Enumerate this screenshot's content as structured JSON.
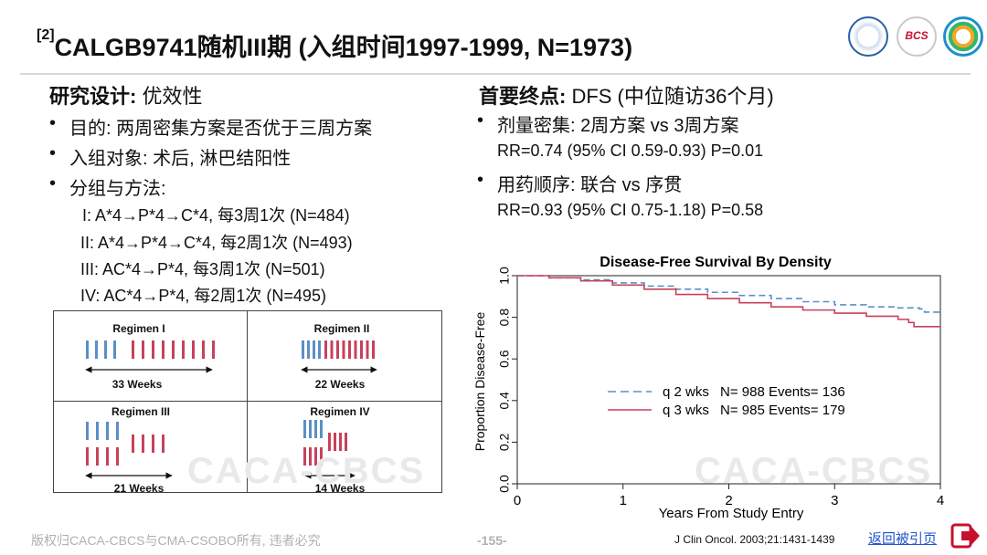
{
  "slide": {
    "title_ref": "[2]",
    "title": "CALGB9741随机III期 (入组时间1997-1999, N=1973)"
  },
  "left": {
    "heading_bold": "研究设计:",
    "heading_rest": " 优效性",
    "bullets": [
      "目的: 两周密集方案是否优于三周方案",
      "入组对象: 术后, 淋巴结阳性",
      "分组与方法:"
    ],
    "arms": [
      "I: A*4→P*4→C*4, 每3周1次 (N=484)",
      "II: A*4→P*4→C*4, 每2周1次 (N=493)",
      "III: AC*4→P*4, 每3周1次 (N=501)",
      "IV: AC*4→P*4, 每2周1次 (N=495)"
    ]
  },
  "regimens": [
    {
      "name": "Regimen I",
      "weeks": "33 Weeks"
    },
    {
      "name": "Regimen II",
      "weeks": "22 Weeks"
    },
    {
      "name": "Regimen III",
      "weeks": "21 Weeks"
    },
    {
      "name": "Regimen IV",
      "weeks": "14 Weeks"
    }
  ],
  "right": {
    "heading_bold": "首要终点:",
    "heading_rest": " DFS (中位随访36个月)",
    "items": [
      {
        "bullet": "剂量密集: 2周方案 vs 3周方案",
        "stat": "RR=0.74 (95% CI 0.59-0.93) P=0.01"
      },
      {
        "bullet": "用药顺序: 联合 vs 序贯",
        "stat": "RR=0.93 (95% CI 0.75-1.18) P=0.58"
      }
    ]
  },
  "chart_data": {
    "type": "line",
    "title": "Disease-Free Survival By Density",
    "xlabel": "Years From Study Entry",
    "ylabel": "Proportion Disease-Free",
    "xlim": [
      0,
      4
    ],
    "ylim": [
      0,
      1
    ],
    "xticks": [
      "0",
      "1",
      "2",
      "3",
      "4"
    ],
    "yticks": [
      "0.0",
      "0.2",
      "0.4",
      "0.6",
      "0.8",
      "1.0"
    ],
    "legend_position": "center-right",
    "series": [
      {
        "name": "q 2 wks",
        "stats": "N= 988 Events= 136",
        "color": "#5b8fc7",
        "style": "dashed",
        "x": [
          0,
          0.3,
          0.6,
          0.9,
          1.2,
          1.5,
          1.8,
          2.1,
          2.4,
          2.7,
          3.0,
          3.3,
          3.6,
          3.8,
          3.85,
          4.0
        ],
        "y": [
          1.0,
          0.99,
          0.98,
          0.965,
          0.95,
          0.935,
          0.92,
          0.905,
          0.89,
          0.875,
          0.86,
          0.85,
          0.845,
          0.84,
          0.825,
          0.825
        ]
      },
      {
        "name": "q 3 wks",
        "stats": "N= 985 Events= 179",
        "color": "#c8415a",
        "style": "solid",
        "x": [
          0,
          0.3,
          0.6,
          0.9,
          1.2,
          1.5,
          1.8,
          2.1,
          2.4,
          2.7,
          3.0,
          3.3,
          3.6,
          3.7,
          3.75,
          4.0
        ],
        "y": [
          1.0,
          0.99,
          0.975,
          0.955,
          0.935,
          0.91,
          0.89,
          0.87,
          0.85,
          0.835,
          0.82,
          0.805,
          0.79,
          0.775,
          0.755,
          0.755
        ]
      }
    ]
  },
  "watermark": "CACA-CBCS",
  "footer": {
    "copyright": "版权归CACA-CBCS与CMA-CSOBO所有, 违者必究",
    "page": "-155-",
    "citation": "J Clin Oncol. 2003;21:1431-1439",
    "back_link": "返回被引页"
  },
  "logos": {
    "logo2_text": "BCS"
  },
  "colors": {
    "blue_bar": "#5b8fc7",
    "red_bar": "#c8415a"
  }
}
